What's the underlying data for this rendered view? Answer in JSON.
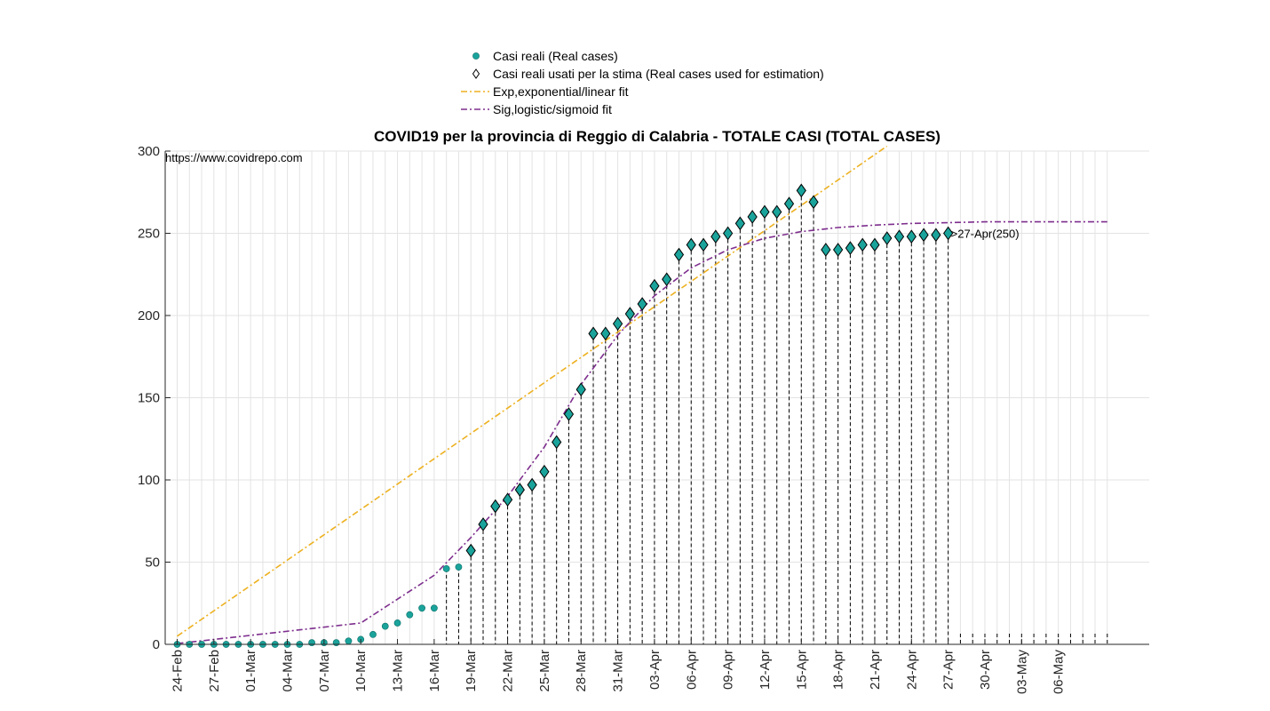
{
  "chart_data": {
    "type": "scatter",
    "title": "COVID19 per la provincia di Reggio di Calabria - TOTALE CASI (TOTAL CASES)",
    "watermark": "https://www.covidrepo.com",
    "annotation": ">27-Apr(250)",
    "xlabel": "",
    "ylabel": "",
    "ylim": [
      0,
      300
    ],
    "yticks": [
      0,
      50,
      100,
      150,
      200,
      250,
      300
    ],
    "x_start": "24-Feb",
    "x_end": "10-May",
    "xtick_labels": [
      "24-Feb",
      "27-Feb",
      "01-Mar",
      "04-Mar",
      "07-Mar",
      "10-Mar",
      "13-Mar",
      "16-Mar",
      "19-Mar",
      "22-Mar",
      "25-Mar",
      "28-Mar",
      "31-Mar",
      "03-Apr",
      "06-Apr",
      "09-Apr",
      "12-Apr",
      "15-Apr",
      "18-Apr",
      "21-Apr",
      "24-Apr",
      "27-Apr",
      "30-Apr",
      "03-May",
      "06-May"
    ],
    "grid": true,
    "legend_position": "top-center",
    "series": [
      {
        "name": "Casi reali (Real cases)",
        "kind": "filled-circle",
        "color": "#1aa39b",
        "dates": [
          "24-Feb",
          "25-Feb",
          "26-Feb",
          "27-Feb",
          "28-Feb",
          "29-Feb",
          "01-Mar",
          "02-Mar",
          "03-Mar",
          "04-Mar",
          "05-Mar",
          "06-Mar",
          "07-Mar",
          "08-Mar",
          "09-Mar",
          "10-Mar",
          "11-Mar",
          "12-Mar",
          "13-Mar",
          "14-Mar",
          "15-Mar",
          "16-Mar",
          "17-Mar",
          "18-Mar",
          "19-Mar",
          "20-Mar",
          "21-Mar",
          "22-Mar",
          "23-Mar",
          "24-Mar",
          "25-Mar",
          "26-Mar",
          "27-Mar",
          "28-Mar",
          "29-Mar",
          "30-Mar",
          "31-Mar",
          "01-Apr",
          "02-Apr",
          "03-Apr",
          "04-Apr",
          "05-Apr",
          "06-Apr",
          "07-Apr",
          "08-Apr",
          "09-Apr",
          "10-Apr",
          "11-Apr",
          "12-Apr",
          "13-Apr",
          "14-Apr",
          "15-Apr",
          "16-Apr",
          "17-Apr",
          "18-Apr",
          "19-Apr",
          "20-Apr",
          "21-Apr",
          "22-Apr",
          "23-Apr",
          "24-Apr",
          "25-Apr",
          "26-Apr",
          "27-Apr"
        ],
        "values": [
          0,
          0,
          0,
          0,
          0,
          0,
          0,
          0,
          0,
          0,
          0,
          1,
          1,
          1,
          2,
          3,
          6,
          11,
          13,
          18,
          22,
          22,
          46,
          47,
          57,
          73,
          84,
          88,
          94,
          97,
          105,
          123,
          140,
          155,
          189,
          189,
          195,
          201,
          207,
          218,
          222,
          237,
          243,
          243,
          248,
          250,
          256,
          260,
          263,
          263,
          268,
          276,
          269,
          240,
          240,
          241,
          243,
          243,
          247,
          248,
          248,
          249,
          249,
          250
        ]
      },
      {
        "name": "Casi reali usati per la stima (Real cases used for estimation)",
        "kind": "diamond",
        "color": "#000000",
        "start_date": "19-Mar",
        "end_date": "27-Apr"
      },
      {
        "name": "Exp,exponential/linear fit",
        "kind": "dash-dot-line",
        "color": "#EDB120",
        "dates": [
          "24-Feb",
          "22-Apr"
        ],
        "values": [
          5,
          303
        ]
      },
      {
        "name": "Sig,logistic/sigmoid fit",
        "kind": "dash-dot-line",
        "color": "#7E2F8E",
        "dates": [
          "24-Feb",
          "10-Mar",
          "16-Mar",
          "19-Mar",
          "22-Mar",
          "25-Mar",
          "28-Mar",
          "31-Mar",
          "03-Apr",
          "06-Apr",
          "09-Apr",
          "12-Apr",
          "15-Apr",
          "18-Apr",
          "21-Apr",
          "24-Apr",
          "27-Apr",
          "30-Apr",
          "03-May",
          "06-May",
          "10-May"
        ],
        "values": [
          0.5,
          13,
          42,
          65,
          90,
          120,
          158,
          188,
          212,
          229,
          240,
          247,
          251,
          253.5,
          255,
          256,
          256.5,
          257,
          257,
          257,
          257
        ]
      }
    ]
  }
}
